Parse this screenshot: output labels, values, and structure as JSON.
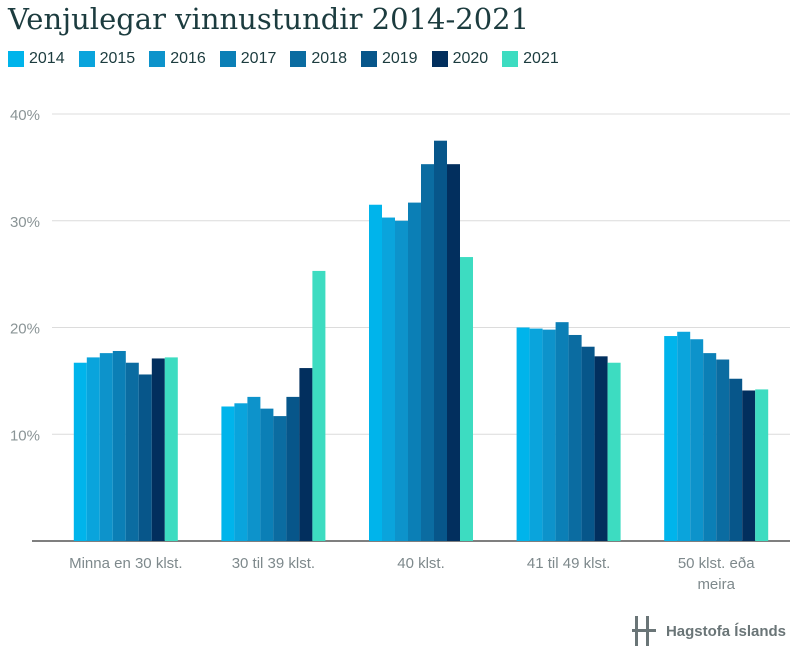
{
  "chart_data": {
    "type": "bar",
    "title": "Venjulegar vinnustundir 2014-2021",
    "categories": [
      [
        "Minna en 30 klst."
      ],
      [
        "30 til 39 klst."
      ],
      [
        "40 klst."
      ],
      [
        "41 til 49 klst."
      ],
      [
        "50 klst. eða",
        "meira"
      ]
    ],
    "series": [
      {
        "name": "2014",
        "color": "#00b4eb",
        "values": [
          16.7,
          12.6,
          31.5,
          20.0,
          19.2
        ]
      },
      {
        "name": "2015",
        "color": "#0aa4dc",
        "values": [
          17.2,
          12.9,
          30.3,
          19.9,
          19.6
        ]
      },
      {
        "name": "2016",
        "color": "#0d93cb",
        "values": [
          17.6,
          13.5,
          30.0,
          19.8,
          18.9
        ]
      },
      {
        "name": "2017",
        "color": "#0b7fb6",
        "values": [
          17.8,
          12.4,
          31.7,
          20.5,
          17.6
        ]
      },
      {
        "name": "2018",
        "color": "#0b6ca1",
        "values": [
          16.7,
          11.7,
          35.3,
          19.3,
          17.0
        ]
      },
      {
        "name": "2019",
        "color": "#07568a",
        "values": [
          15.6,
          13.5,
          37.5,
          18.2,
          15.2
        ]
      },
      {
        "name": "2020",
        "color": "#022f5e",
        "values": [
          17.1,
          16.2,
          35.3,
          17.3,
          14.1
        ]
      },
      {
        "name": "2021",
        "color": "#3ddcc1",
        "values": [
          17.2,
          25.3,
          26.6,
          16.7,
          14.2
        ]
      }
    ],
    "yticks": [
      "10%",
      "20%",
      "30%",
      "40%"
    ],
    "ytick_values": [
      10,
      20,
      30,
      40
    ],
    "ylim": [
      0,
      40
    ],
    "grid": true,
    "legend_position": "top-left"
  },
  "brand": {
    "name": "Hagstofa Íslands",
    "logo_icon": "hagstofa-logo-icon"
  }
}
